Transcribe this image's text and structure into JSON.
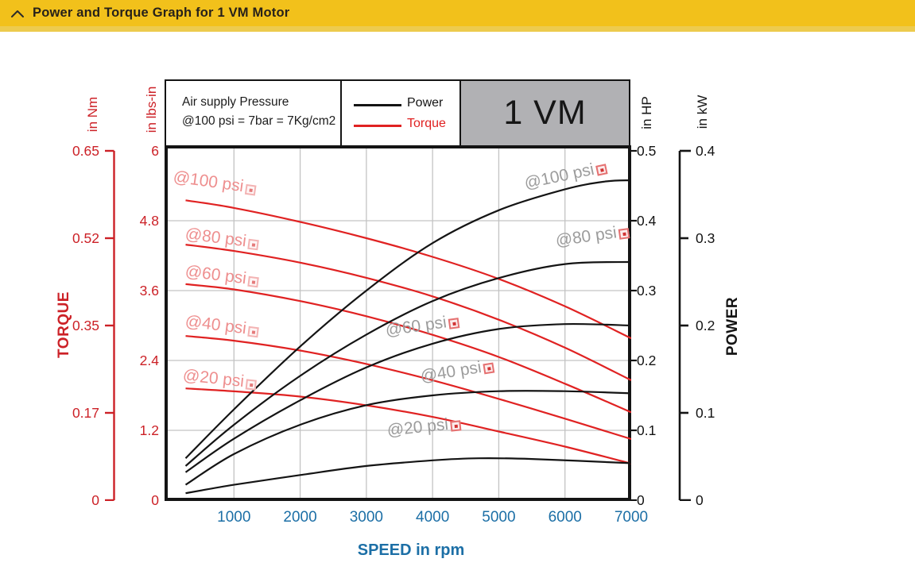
{
  "header": {
    "title": "Power and Torque Graph for 1 VM Motor",
    "collapse_icon": "chevron-up"
  },
  "legend": {
    "pressure_line1": "Air supply Pressure",
    "pressure_line2": "@100 psi = 7bar = 7Kg/cm2",
    "power_label": "Power",
    "torque_label": "Torque",
    "model": "1 VM"
  },
  "colors": {
    "header_yellow": "#F2C11B",
    "torque_red": "#E02222",
    "axis_red": "#CC2127",
    "power_black": "#141414",
    "speed_blue": "#1C6FA6",
    "grid_gray": "#C3C3C3",
    "model_box_gray": "#B1B1B4",
    "power_label_gray": "#9C9C9C",
    "torque_label_lightred": "#EE8F8F"
  },
  "chart_data": {
    "type": "line",
    "title": "1 VM",
    "xlabel": "SPEED in rpm",
    "x_range": [
      0,
      7000
    ],
    "x_ticks": [
      "1000",
      "2000",
      "3000",
      "4000",
      "5000",
      "6000",
      "7000"
    ],
    "grid": true,
    "legend_position": "top",
    "axes": {
      "torque_title": "TORQUE",
      "power_title": "POWER",
      "torque_nm": {
        "label": "in Nm",
        "ticks": [
          "0.65",
          "0.52",
          "0.35",
          "0.17",
          "0"
        ]
      },
      "torque_lbsin": {
        "label": "in lbs-in",
        "ticks": [
          "6",
          "4.8",
          "3.6",
          "2.4",
          "1.2",
          "0"
        ],
        "range": [
          0,
          6
        ]
      },
      "power_hp": {
        "label": "in HP",
        "ticks": [
          "0.5",
          "0.4",
          "0.3",
          "0.2",
          "0.1",
          "0"
        ],
        "range": [
          0,
          0.5
        ]
      },
      "power_kw": {
        "label": "in kW",
        "ticks": [
          "0.4",
          "0.3",
          "0.2",
          "0.1",
          "0"
        ]
      }
    },
    "series": [
      {
        "id": "torque-100psi",
        "name": "Torque @100 psi",
        "unit": "lbs-in",
        "color": "#E02222",
        "points": [
          [
            270,
            5.15
          ],
          [
            1000,
            5.02
          ],
          [
            2000,
            4.78
          ],
          [
            3000,
            4.5
          ],
          [
            4000,
            4.18
          ],
          [
            5000,
            3.8
          ],
          [
            6000,
            3.33
          ],
          [
            7000,
            2.78
          ]
        ]
      },
      {
        "id": "torque-80psi",
        "name": "Torque @80 psi",
        "unit": "lbs-in",
        "color": "#E02222",
        "points": [
          [
            270,
            4.39
          ],
          [
            1000,
            4.28
          ],
          [
            2000,
            4.08
          ],
          [
            3000,
            3.82
          ],
          [
            4000,
            3.5
          ],
          [
            5000,
            3.1
          ],
          [
            6000,
            2.62
          ],
          [
            7000,
            2.06
          ]
        ]
      },
      {
        "id": "torque-60psi",
        "name": "Torque @60 psi",
        "unit": "lbs-in",
        "color": "#E02222",
        "points": [
          [
            270,
            3.71
          ],
          [
            1000,
            3.62
          ],
          [
            2000,
            3.42
          ],
          [
            3000,
            3.16
          ],
          [
            4000,
            2.84
          ],
          [
            5000,
            2.46
          ],
          [
            6000,
            2.0
          ],
          [
            7000,
            1.51
          ]
        ]
      },
      {
        "id": "torque-40psi",
        "name": "Torque @40 psi",
        "unit": "lbs-in",
        "color": "#E02222",
        "points": [
          [
            270,
            2.82
          ],
          [
            1000,
            2.74
          ],
          [
            2000,
            2.57
          ],
          [
            3000,
            2.34
          ],
          [
            4000,
            2.06
          ],
          [
            5000,
            1.74
          ],
          [
            6000,
            1.4
          ],
          [
            7000,
            1.05
          ]
        ]
      },
      {
        "id": "torque-20psi",
        "name": "Torque @20 psi",
        "unit": "lbs-in",
        "color": "#E02222",
        "points": [
          [
            270,
            1.92
          ],
          [
            1000,
            1.87
          ],
          [
            2000,
            1.78
          ],
          [
            3000,
            1.63
          ],
          [
            4000,
            1.43
          ],
          [
            5000,
            1.18
          ],
          [
            6000,
            0.92
          ],
          [
            7000,
            0.63
          ]
        ]
      },
      {
        "id": "power-100psi",
        "name": "Power @100 psi",
        "unit": "HP",
        "color": "#141414",
        "points": [
          [
            270,
            0.06
          ],
          [
            1000,
            0.13
          ],
          [
            2000,
            0.22
          ],
          [
            3000,
            0.3
          ],
          [
            4000,
            0.368
          ],
          [
            5000,
            0.415
          ],
          [
            6000,
            0.445
          ],
          [
            6600,
            0.456
          ],
          [
            7000,
            0.458
          ]
        ]
      },
      {
        "id": "power-80psi",
        "name": "Power @80 psi",
        "unit": "HP",
        "color": "#141414",
        "points": [
          [
            270,
            0.049
          ],
          [
            1000,
            0.108
          ],
          [
            2000,
            0.178
          ],
          [
            3000,
            0.237
          ],
          [
            4000,
            0.285
          ],
          [
            5000,
            0.318
          ],
          [
            6000,
            0.338
          ],
          [
            7000,
            0.341
          ]
        ]
      },
      {
        "id": "power-60psi",
        "name": "Power @60 psi",
        "unit": "HP",
        "color": "#141414",
        "points": [
          [
            270,
            0.04
          ],
          [
            1000,
            0.088
          ],
          [
            2000,
            0.143
          ],
          [
            3000,
            0.19
          ],
          [
            4000,
            0.224
          ],
          [
            5000,
            0.245
          ],
          [
            6000,
            0.252
          ],
          [
            7000,
            0.25
          ]
        ]
      },
      {
        "id": "power-40psi",
        "name": "Power @40 psi",
        "unit": "HP",
        "color": "#141414",
        "points": [
          [
            270,
            0.022
          ],
          [
            1000,
            0.066
          ],
          [
            2000,
            0.108
          ],
          [
            3000,
            0.136
          ],
          [
            4000,
            0.15
          ],
          [
            5000,
            0.156
          ],
          [
            6000,
            0.156
          ],
          [
            7000,
            0.153
          ]
        ]
      },
      {
        "id": "power-20psi",
        "name": "Power @20 psi",
        "unit": "HP",
        "color": "#141414",
        "points": [
          [
            270,
            0.01
          ],
          [
            1000,
            0.022
          ],
          [
            2000,
            0.036
          ],
          [
            3000,
            0.049
          ],
          [
            4000,
            0.057
          ],
          [
            4700,
            0.06
          ],
          [
            5500,
            0.059
          ],
          [
            7000,
            0.053
          ]
        ]
      }
    ],
    "curve_labels": [
      {
        "text": "@100 psi",
        "style": "torque",
        "x": 11,
        "y": 28,
        "rot": 8
      },
      {
        "text": "@80 psi",
        "style": "torque",
        "x": 26,
        "y": 100,
        "rot": 7
      },
      {
        "text": "@60 psi",
        "style": "torque",
        "x": 26,
        "y": 147,
        "rot": 7
      },
      {
        "text": "@40 psi",
        "style": "torque",
        "x": 26,
        "y": 210,
        "rot": 7
      },
      {
        "text": "@20 psi",
        "style": "torque",
        "x": 23,
        "y": 278,
        "rot": 6
      },
      {
        "text": "@100 psi",
        "style": "power",
        "x": 453,
        "y": 37,
        "rot": -12
      },
      {
        "text": "@80 psi",
        "style": "power",
        "x": 492,
        "y": 109,
        "rot": -8
      },
      {
        "text": "@60 psi",
        "style": "power",
        "x": 278,
        "y": 222,
        "rot": -8
      },
      {
        "text": "@40 psi",
        "style": "power",
        "x": 322,
        "y": 280,
        "rot": -9
      },
      {
        "text": "@20 psi",
        "style": "power",
        "x": 280,
        "y": 348,
        "rot": -6
      }
    ]
  }
}
